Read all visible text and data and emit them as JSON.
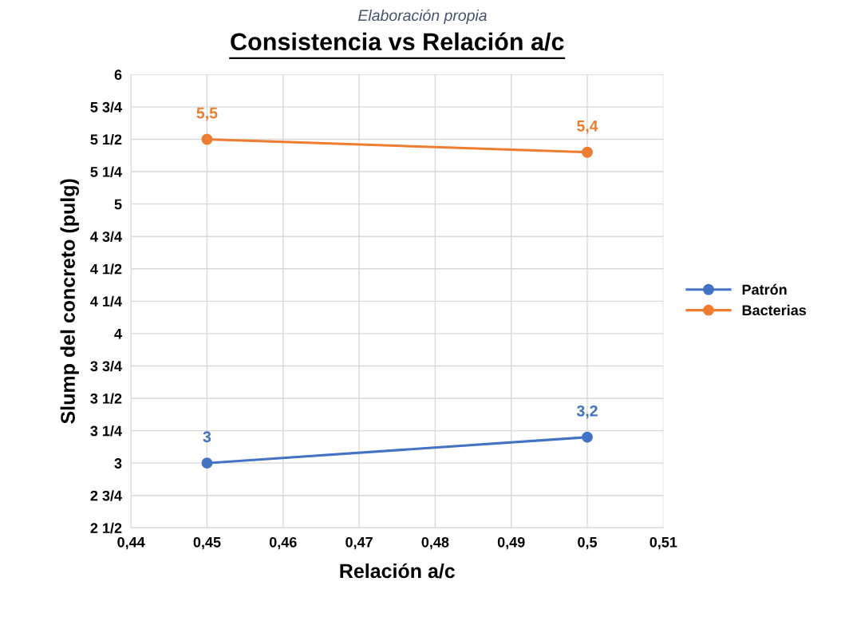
{
  "chart_data": {
    "type": "line",
    "title": "Consistencia vs Relación a/c",
    "xlabel": "Relación a/c",
    "ylabel": "Slump del concreto (pulg)",
    "annotations": [
      "Elaboración propia"
    ],
    "x": [
      0.45,
      0.5
    ],
    "series": [
      {
        "name": "Patrón",
        "color": "#4472c4",
        "values": [
          3,
          3.2
        ],
        "value_labels": [
          "3",
          "3,2"
        ]
      },
      {
        "name": "Bacterias",
        "color": "#ed7d31",
        "values": [
          5.5,
          5.4
        ],
        "value_labels": [
          "5,5",
          "5,4"
        ]
      }
    ],
    "xlim": [
      0.44,
      0.51
    ],
    "xticks": [
      {
        "value": 0.44,
        "label": "0,44"
      },
      {
        "value": 0.45,
        "label": "0,45"
      },
      {
        "value": 0.46,
        "label": "0,46"
      },
      {
        "value": 0.47,
        "label": "0,47"
      },
      {
        "value": 0.48,
        "label": "0,48"
      },
      {
        "value": 0.49,
        "label": "0,49"
      },
      {
        "value": 0.5,
        "label": "0,5"
      },
      {
        "value": 0.51,
        "label": "0,51"
      }
    ],
    "ylim": [
      2.5,
      6
    ],
    "yticks": [
      {
        "value": 2.5,
        "label": "2 1/2"
      },
      {
        "value": 2.75,
        "label": "2 3/4"
      },
      3,
      {
        "value": 3.25,
        "label": "3 1/4"
      },
      {
        "value": 3.5,
        "label": "3 1/2"
      },
      {
        "value": 3.75,
        "label": "3 3/4"
      },
      4,
      {
        "value": 4.25,
        "label": "4 1/4"
      },
      {
        "value": 4.5,
        "label": "4 1/2"
      },
      {
        "value": 4.75,
        "label": "4 3/4"
      },
      5,
      {
        "value": 5.25,
        "label": "5 1/4"
      },
      {
        "value": 5.5,
        "label": "5 1/2"
      },
      {
        "value": 5.75,
        "label": "5 3/4"
      },
      6
    ],
    "grid": true,
    "legend": "right",
    "marker": "circle",
    "line_style": "solid"
  }
}
